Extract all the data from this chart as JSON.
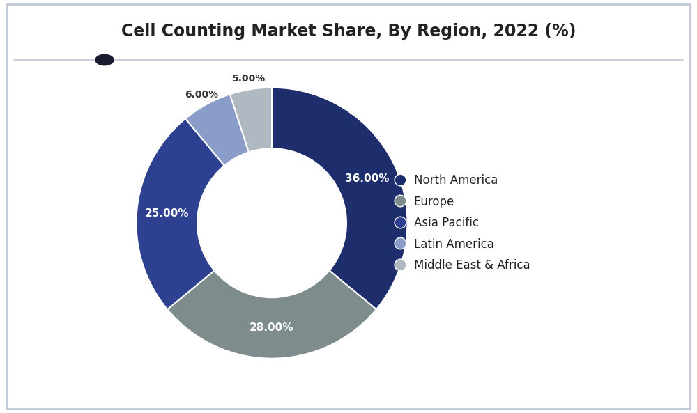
{
  "title": "Cell Counting Market Share, By Region, 2022 (%)",
  "slices": [
    {
      "label": "North America",
      "value": 36.0,
      "color": "#1e2d6b"
    },
    {
      "label": "Europe",
      "value": 28.0,
      "color": "#7f8c8d"
    },
    {
      "label": "Asia Pacific",
      "value": 25.0,
      "color": "#2e4090"
    },
    {
      "label": "Latin America",
      "value": 6.0,
      "color": "#8a9cc8"
    },
    {
      "label": "Middle East & Africa",
      "value": 5.0,
      "color": "#b0b8c1"
    }
  ],
  "pct_labels": [
    "36.00%",
    "28.00%",
    "25.00%",
    "6.00%",
    "5.00%"
  ],
  "label_fontsize": 11,
  "title_fontsize": 17,
  "legend_fontsize": 12,
  "bg_color": "#ffffff",
  "border_color": "#c0c8d8",
  "donut_width": 0.45,
  "start_angle": 90,
  "fig_width": 10.0,
  "fig_height": 5.93
}
